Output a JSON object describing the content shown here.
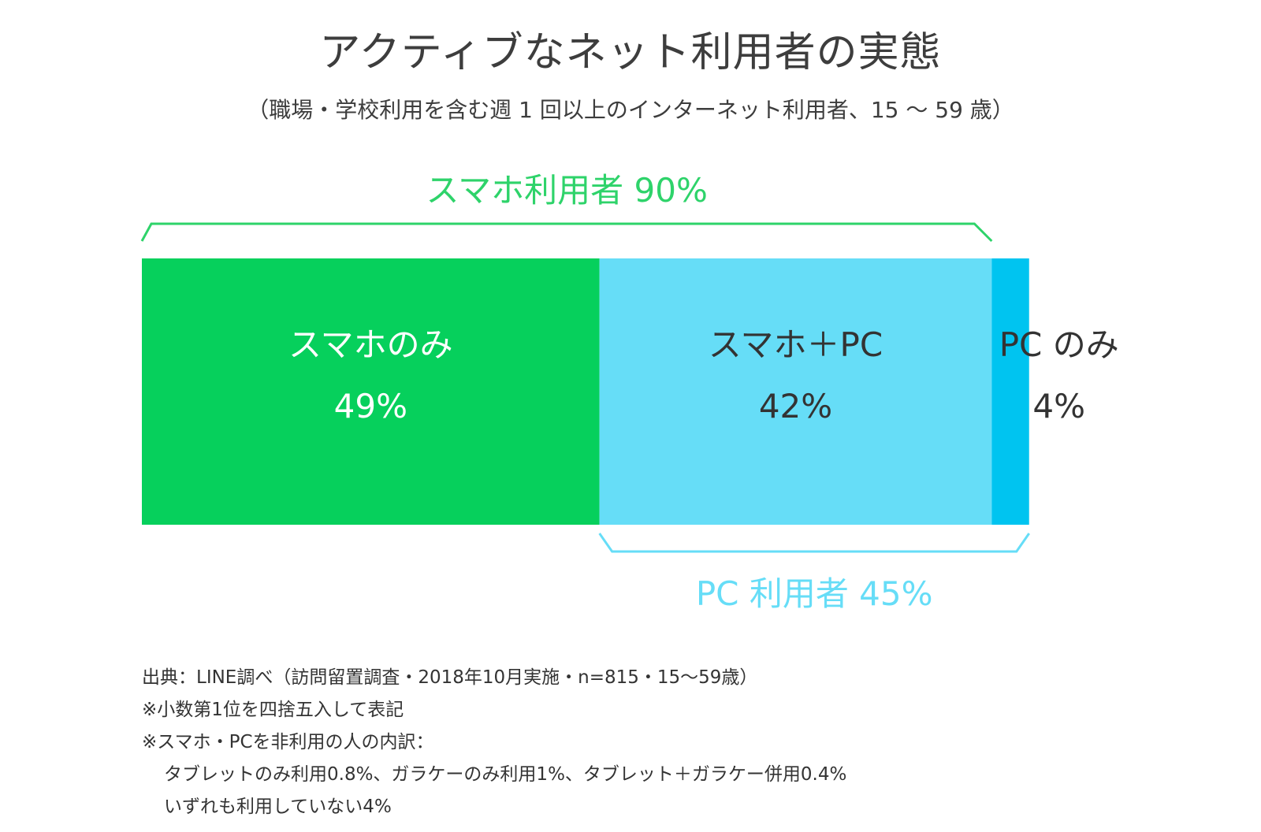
{
  "title": "アクティブなネット利用者の実態",
  "subtitle": "（職場・学校利用を含む週 1 回以上のインターネット利用者、15 〜 59 歳）",
  "chart_data": {
    "type": "bar",
    "orientation": "horizontal-stacked",
    "segments": [
      {
        "label": "スマホのみ",
        "value": 49,
        "value_label": "49%",
        "color": "#06d05c",
        "text_color": "#ffffff"
      },
      {
        "label": "スマホ＋PC",
        "value": 42,
        "value_label": "42%",
        "color": "#66ddf7",
        "text_color": "#333333"
      },
      {
        "label": "PC のみ",
        "value": 4,
        "value_label": "4%",
        "color": "#00c4f0",
        "text_color": "#333333"
      }
    ],
    "brackets": [
      {
        "label": "スマホ利用者 90%",
        "from": 0,
        "to": 91,
        "color": "#2ed36a",
        "position": "top"
      },
      {
        "label": "PC 利用者 45%",
        "from": 49,
        "to": 95,
        "color": "#66ddf7",
        "position": "bottom"
      }
    ]
  },
  "notes": {
    "source": "出典：LINE調べ（訪問留置調査・2018年10月実施・n=815・15〜59歳）",
    "rounding": "※小数第1位を四捨五入して表記",
    "breakdown_title": "※スマホ・PCを非利用の人の内訳：",
    "breakdown_line1": "タブレットのみ利用0.8%、ガラケーのみ利用1%、タブレット＋ガラケー併用0.4%",
    "breakdown_line2": "いずれも利用していない4%"
  }
}
